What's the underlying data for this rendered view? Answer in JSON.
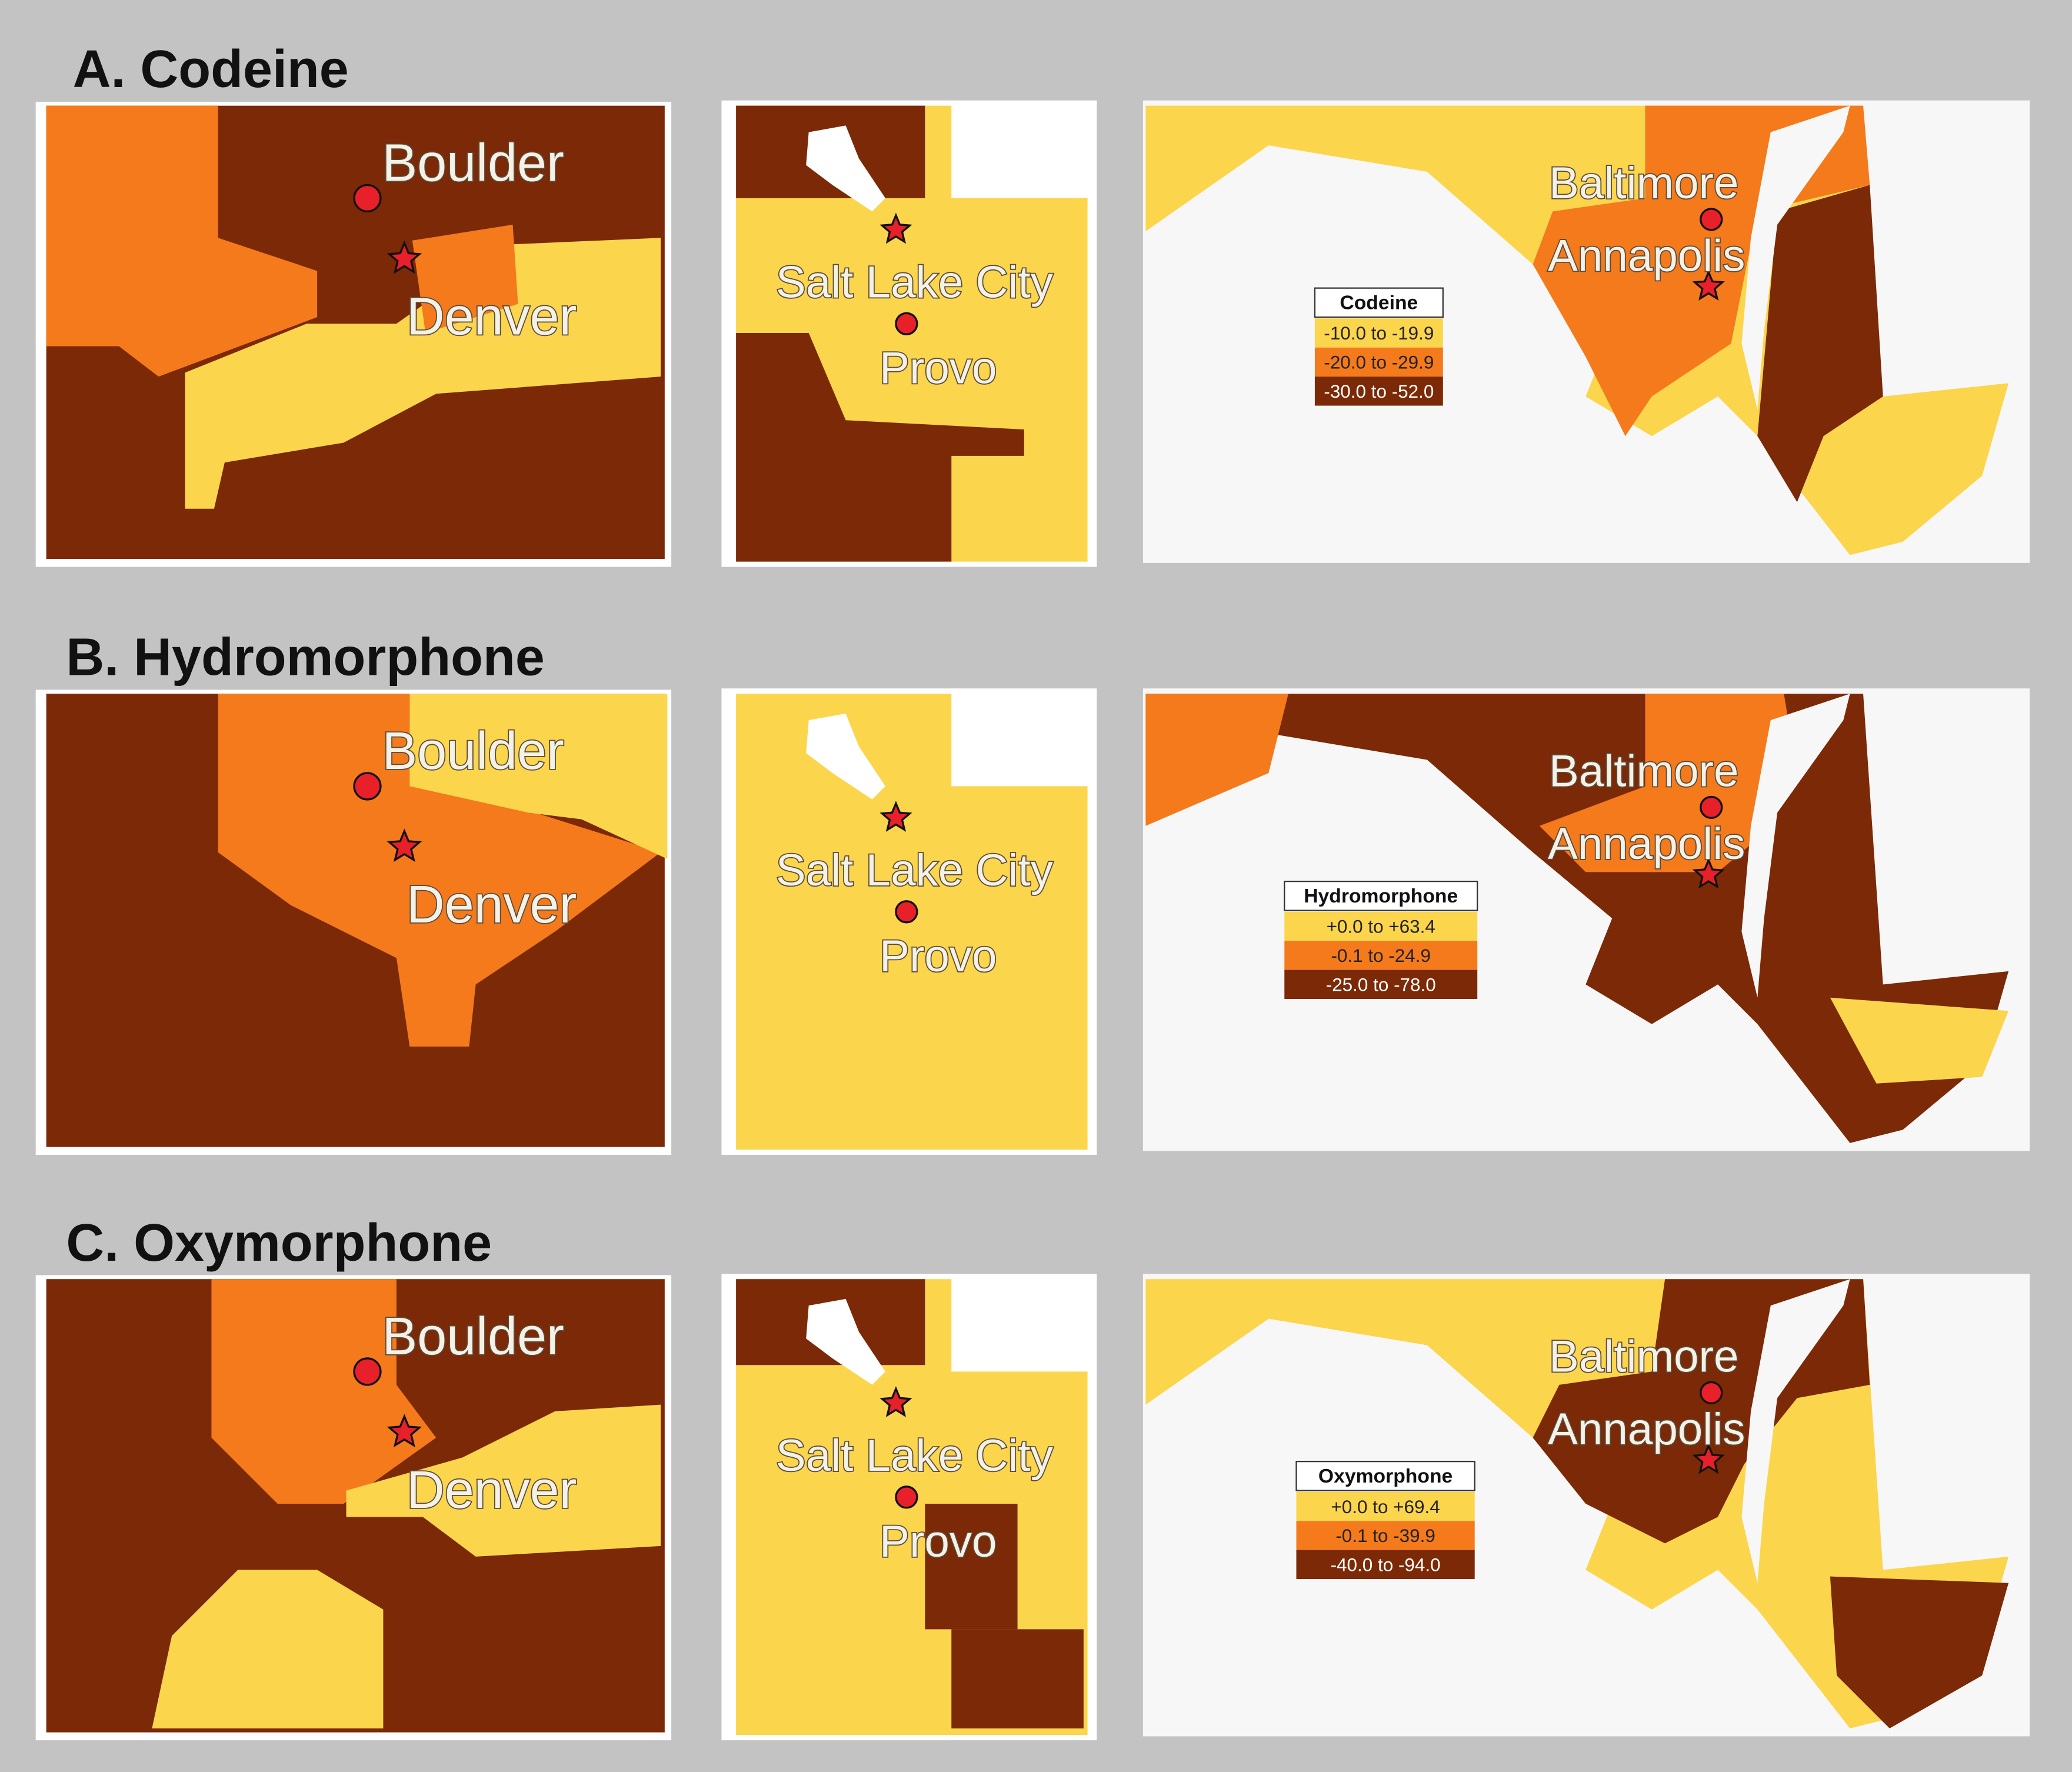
{
  "panels": [
    {
      "title": "A. Codeine",
      "cities": [
        "Boulder",
        "Denver",
        "Salt Lake City",
        "Provo",
        "Baltimore",
        "Annapolis"
      ],
      "legend": {
        "title": "Codeine",
        "items": [
          "-10.0 to -19.9",
          "-20.0 to -29.9",
          "-30.0 to -52.0"
        ]
      }
    },
    {
      "title": "B. Hydromorphone",
      "cities": [
        "Boulder",
        "Denver",
        "Salt Lake City",
        "Provo",
        "Baltimore",
        "Annapolis"
      ],
      "legend": {
        "title": "Hydromorphone",
        "items": [
          "+0.0 to +63.4",
          "-0.1 to -24.9",
          "-25.0 to -78.0"
        ]
      }
    },
    {
      "title": "C. Oxymorphone",
      "cities": [
        "Boulder",
        "Denver",
        "Salt Lake City",
        "Provo",
        "Baltimore",
        "Annapolis"
      ],
      "legend": {
        "title": "Oxymorphone",
        "items": [
          "+0.0 to +69.4",
          "-0.1 to -39.9",
          "-40.0 to -94.0"
        ]
      }
    }
  ]
}
